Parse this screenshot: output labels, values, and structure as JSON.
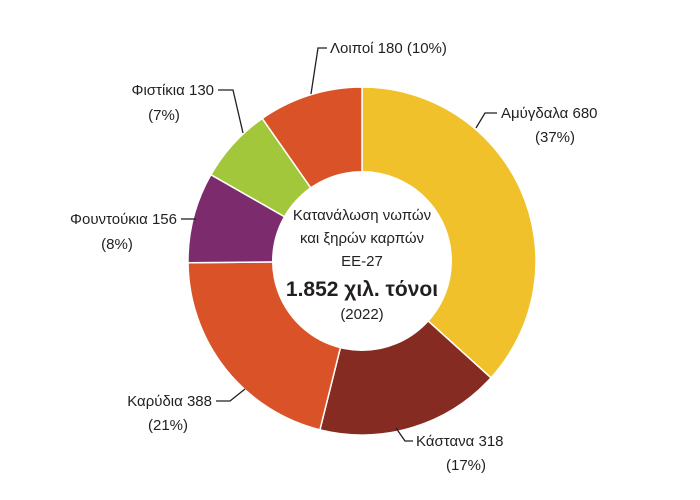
{
  "chart_data": {
    "type": "pie",
    "variant": "donut",
    "title": "Κατανάλωση νωπών και ξηρών καρπών ΕΕ-27",
    "center_text": {
      "line1": "Κατανάλωση νωπών",
      "line2": "και ξηρών καρπών",
      "line3": "ΕΕ-27",
      "total": "1.852 χιλ. τόνοι",
      "year": "(2022)"
    },
    "unit": "χιλ. τόνοι",
    "slices": [
      {
        "name": "Αμύγδαλα",
        "value": 680,
        "percent": 37,
        "label": "Αμύγδαλα 680",
        "pct_label": "(37%)",
        "color": "#F0C12B"
      },
      {
        "name": "Κάστανα",
        "value": 318,
        "percent": 17,
        "label": "Κάστανα 318",
        "pct_label": "(17%)",
        "color": "#862B22"
      },
      {
        "name": "Καρύδια",
        "value": 388,
        "percent": 21,
        "label": "Καρύδια 388",
        "pct_label": "(21%)",
        "color": "#DA5328"
      },
      {
        "name": "Φουντούκια",
        "value": 156,
        "percent": 8,
        "label": "Φουντούκια 156",
        "pct_label": "(8%)",
        "color": "#7C2B6C"
      },
      {
        "name": "Φιστίκια",
        "value": 130,
        "percent": 7,
        "label": "Φιστίκια 130",
        "pct_label": "(7%)",
        "color": "#A2C73B"
      },
      {
        "name": "Λοιποί",
        "value": 180,
        "percent": 10,
        "label": "Λοιποί 180 (10%)",
        "pct_label": "",
        "color": "#DA5328"
      }
    ]
  }
}
